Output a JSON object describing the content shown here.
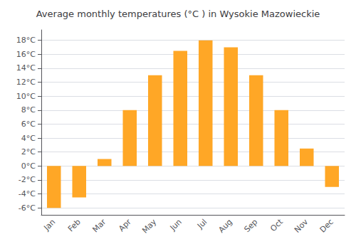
{
  "chart_data": {
    "type": "bar",
    "title": "Average monthly temperatures (°C ) in Wysokie Mazowieckie",
    "categories": [
      "Jan",
      "Feb",
      "Mar",
      "Apr",
      "May",
      "Jun",
      "Jul",
      "Aug",
      "Sep",
      "Oct",
      "Nov",
      "Dec"
    ],
    "values": [
      -6,
      -4.5,
      1,
      8,
      13,
      16.5,
      18,
      17,
      13,
      8,
      2.5,
      -3
    ],
    "color": "#FFA726",
    "ylim": [
      -7,
      19.5
    ],
    "yticks": [
      {
        "value": -6,
        "label": "-6°C"
      },
      {
        "value": -4,
        "label": "-4°C"
      },
      {
        "value": -2,
        "label": "-2°C"
      },
      {
        "value": 0,
        "label": "0°C"
      },
      {
        "value": 2,
        "label": "2°C"
      },
      {
        "value": 4,
        "label": "4°C"
      },
      {
        "value": 6,
        "label": "6°C"
      },
      {
        "value": 8,
        "label": "8°C"
      },
      {
        "value": 10,
        "label": "10°C"
      },
      {
        "value": 12,
        "label": "12°C"
      },
      {
        "value": 14,
        "label": "14°C"
      },
      {
        "value": 16,
        "label": "16°C"
      },
      {
        "value": 18,
        "label": "18°C"
      }
    ],
    "grid": true
  }
}
